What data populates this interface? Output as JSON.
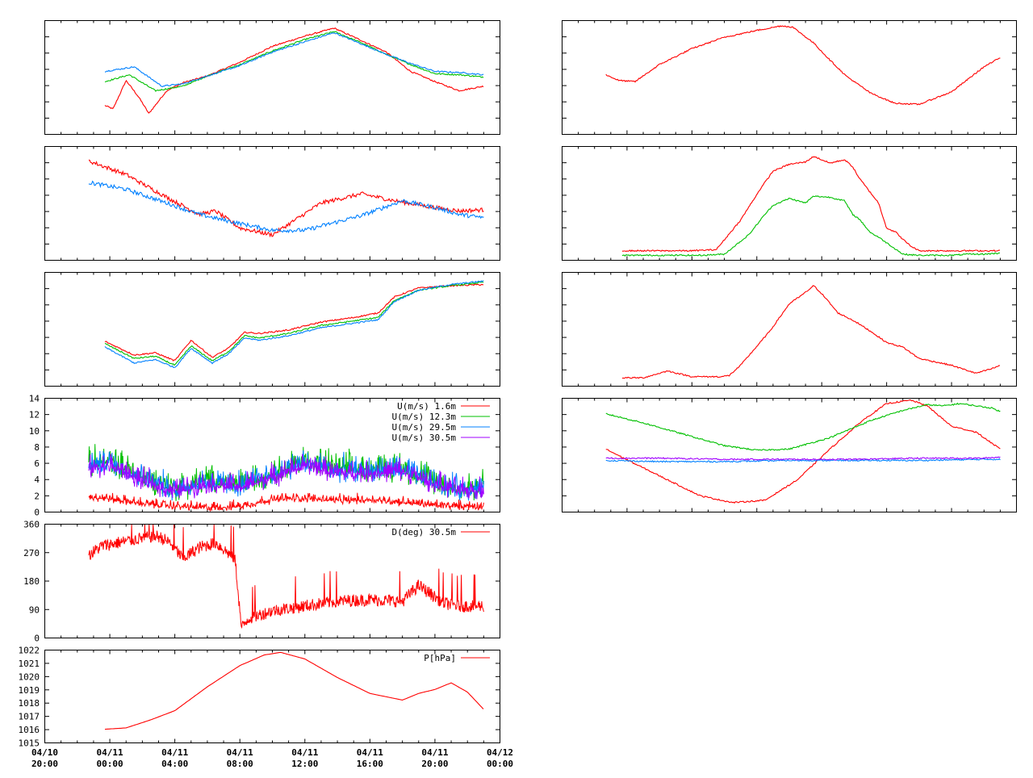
{
  "colors": {
    "red": "#ff0000",
    "green": "#00c000",
    "blue": "#0080ff",
    "purple": "#a000ff",
    "frame": "#000000"
  },
  "x_axis": {
    "range": [
      "04/10 20:00",
      "04/12 00:00"
    ],
    "ticks": [
      {
        "date": "04/10",
        "time": "20:00"
      },
      {
        "date": "04/11",
        "time": "00:00"
      },
      {
        "date": "04/11",
        "time": "04:00"
      },
      {
        "date": "04/11",
        "time": "08:00"
      },
      {
        "date": "04/11",
        "time": "12:00"
      },
      {
        "date": "04/11",
        "time": "16:00"
      },
      {
        "date": "04/11",
        "time": "20:00"
      },
      {
        "date": "04/12",
        "time": "00:00"
      }
    ]
  },
  "chart_data": [
    {
      "type": "line",
      "id": "left-1",
      "grid": false,
      "series": [
        {
          "color": "red",
          "x_hours": [
            3.7,
            4.2,
            5.0,
            5.8,
            6.4,
            7.5,
            8.5,
            10,
            12,
            14,
            16,
            17.8,
            19.5,
            21,
            22.5,
            24,
            25.5,
            27
          ],
          "y_rel": [
            0.25,
            0.22,
            0.47,
            0.32,
            0.18,
            0.38,
            0.45,
            0.51,
            0.63,
            0.77,
            0.86,
            0.93,
            0.82,
            0.72,
            0.55,
            0.46,
            0.38,
            0.42
          ]
        },
        {
          "color": "green",
          "x_hours": [
            3.7,
            5.2,
            6.8,
            8.5,
            10,
            12,
            14,
            16,
            17.8,
            19.5,
            21,
            22.5,
            24,
            25.5,
            27
          ],
          "y_rel": [
            0.46,
            0.52,
            0.38,
            0.42,
            0.51,
            0.61,
            0.73,
            0.83,
            0.9,
            0.8,
            0.7,
            0.61,
            0.53,
            0.52,
            0.5
          ]
        },
        {
          "color": "blue",
          "x_hours": [
            3.7,
            5.5,
            7.2,
            8.5,
            10,
            12,
            14,
            16,
            17.8,
            19.5,
            21,
            22.5,
            24,
            25.5,
            27
          ],
          "y_rel": [
            0.55,
            0.59,
            0.42,
            0.44,
            0.51,
            0.6,
            0.72,
            0.81,
            0.89,
            0.79,
            0.7,
            0.62,
            0.55,
            0.54,
            0.52
          ]
        }
      ]
    },
    {
      "type": "line",
      "id": "left-2",
      "grid": false,
      "series": [
        {
          "color": "red",
          "x_hours": [
            2.7,
            5,
            7.5,
            9.5,
            10.5,
            12,
            14,
            15.5,
            17,
            19.5,
            21.5,
            24,
            25.5,
            27
          ],
          "y_rel": [
            0.87,
            0.75,
            0.55,
            0.4,
            0.43,
            0.28,
            0.22,
            0.36,
            0.5,
            0.58,
            0.52,
            0.46,
            0.43,
            0.44
          ]
        },
        {
          "color": "blue",
          "x_hours": [
            2.7,
            5,
            7.5,
            9.5,
            11,
            14,
            16,
            19.5,
            22,
            24,
            25.5,
            27
          ],
          "y_rel": [
            0.68,
            0.62,
            0.5,
            0.4,
            0.35,
            0.26,
            0.26,
            0.39,
            0.52,
            0.46,
            0.4,
            0.37
          ]
        }
      ]
    },
    {
      "type": "line",
      "id": "left-3",
      "grid": false,
      "series": [
        {
          "color": "red",
          "x_hours": [
            3.7,
            5.5,
            6.8,
            8.0,
            9.0,
            10.3,
            11.3,
            12.3,
            13.2,
            15.0,
            17,
            19,
            20.5,
            21.5,
            23,
            25,
            27
          ],
          "y_rel": [
            0.39,
            0.27,
            0.29,
            0.22,
            0.4,
            0.25,
            0.33,
            0.47,
            0.46,
            0.49,
            0.56,
            0.6,
            0.64,
            0.78,
            0.86,
            0.88,
            0.89
          ]
        },
        {
          "color": "green",
          "x_hours": [
            3.7,
            5.5,
            6.8,
            8.0,
            9.0,
            10.3,
            11.3,
            12.3,
            13.2,
            15.0,
            17,
            19,
            20.5,
            21.5,
            23,
            25,
            27
          ],
          "y_rel": [
            0.37,
            0.24,
            0.26,
            0.18,
            0.35,
            0.22,
            0.3,
            0.44,
            0.42,
            0.46,
            0.53,
            0.57,
            0.6,
            0.75,
            0.84,
            0.88,
            0.91
          ]
        },
        {
          "color": "blue",
          "x_hours": [
            3.7,
            5.5,
            6.8,
            8.0,
            9.0,
            10.3,
            11.3,
            12.3,
            13.2,
            15.0,
            17,
            19,
            20.5,
            21.5,
            23,
            25,
            27
          ],
          "y_rel": [
            0.34,
            0.2,
            0.23,
            0.16,
            0.33,
            0.2,
            0.28,
            0.42,
            0.4,
            0.44,
            0.51,
            0.55,
            0.58,
            0.74,
            0.84,
            0.89,
            0.92
          ]
        }
      ]
    },
    {
      "type": "line",
      "id": "wind-speed",
      "grid": false,
      "legend_position": "top-right",
      "ylim": [
        0,
        14
      ],
      "yticks": [
        "0",
        "2",
        "4",
        "6",
        "8",
        "10",
        "12",
        "14"
      ],
      "series": [
        {
          "name": "U(m/s)  1.6m",
          "color": "red",
          "x_hours": [
            2.7,
            4,
            6,
            8,
            10,
            12,
            14,
            16,
            18,
            20,
            22,
            24,
            25.5,
            27
          ],
          "y": [
            1.8,
            1.5,
            0.9,
            0.6,
            0.4,
            0.6,
            1.4,
            1.6,
            1.3,
            1.4,
            1.1,
            0.7,
            0.6,
            0.6
          ],
          "noise": 1.0
        },
        {
          "name": "U(m/s) 12.3m",
          "color": "green",
          "x_hours": [
            2.7,
            4,
            6,
            8,
            10,
            12,
            14,
            16,
            18,
            20,
            22,
            24,
            25.5,
            27
          ],
          "y": [
            5.5,
            6.0,
            4.0,
            2.5,
            3.5,
            3.0,
            4.5,
            6.0,
            5.0,
            5.0,
            5.0,
            3.5,
            2.5,
            2.8
          ],
          "noise": 2.8
        },
        {
          "name": "U(m/s) 29.5m",
          "color": "blue",
          "x_hours": [
            2.7,
            4,
            6,
            8,
            10,
            12,
            14,
            16,
            18,
            20,
            22,
            24,
            25.5,
            27
          ],
          "y": [
            5.3,
            5.8,
            3.8,
            2.4,
            3.4,
            2.9,
            4.3,
            5.8,
            4.8,
            4.8,
            4.8,
            3.3,
            2.4,
            2.7
          ],
          "noise": 2.5
        },
        {
          "name": "U(m/s) 30.5m",
          "color": "purple",
          "x_hours": [
            2.7,
            4,
            6,
            8,
            10,
            12,
            14,
            16,
            18,
            20,
            22,
            24,
            25.5,
            27
          ],
          "y": [
            5.0,
            5.5,
            3.5,
            2.3,
            3.2,
            2.8,
            4.0,
            5.5,
            4.5,
            4.5,
            4.8,
            3.2,
            2.3,
            2.6
          ],
          "noise": 2.2
        }
      ]
    },
    {
      "type": "line",
      "id": "wind-direction",
      "grid": false,
      "legend_position": "top-right",
      "ylim": [
        0,
        360
      ],
      "yticks": [
        "0",
        "90",
        "180",
        "270",
        "360"
      ],
      "series": [
        {
          "name": "D(deg)  30.5m",
          "color": "red",
          "x_hours": [
            2.7,
            3.5,
            4.5,
            5.5,
            6.5,
            7.0,
            7.7,
            8.5,
            9.5,
            10.5,
            11.7,
            12.1,
            12.5,
            14,
            16,
            18,
            20,
            22,
            23,
            24.5,
            25.5,
            27
          ],
          "y": [
            260,
            290,
            300,
            310,
            320,
            320,
            300,
            250,
            285,
            300,
            250,
            30,
            60,
            85,
            100,
            115,
            120,
            115,
            165,
            110,
            100,
            100
          ],
          "noise": 40
        }
      ]
    },
    {
      "type": "line",
      "id": "pressure",
      "grid": false,
      "legend_position": "top-right",
      "ylim": [
        1015,
        1022
      ],
      "yticks": [
        "1015",
        "1016",
        "1017",
        "1018",
        "1019",
        "1020",
        "1021",
        "1022"
      ],
      "series": [
        {
          "name": "P[hPa]",
          "color": "red",
          "x_hours": [
            3.7,
            5,
            6.5,
            8.0,
            10.0,
            12.0,
            13.5,
            14.5,
            16,
            18,
            20,
            22,
            23,
            24,
            25,
            26,
            27
          ],
          "y": [
            1016.0,
            1016.1,
            1016.7,
            1017.4,
            1019.2,
            1020.8,
            1021.6,
            1021.8,
            1021.3,
            1019.9,
            1018.7,
            1018.2,
            1018.7,
            1019.0,
            1019.5,
            1018.8,
            1017.5
          ]
        }
      ]
    },
    {
      "type": "line",
      "id": "right-1",
      "grid": false,
      "series": [
        {
          "color": "red",
          "x_hours": [
            2.7,
            3.5,
            4.5,
            6,
            8,
            10,
            12,
            13.5,
            14.2,
            15.5,
            16.5,
            17.5,
            19,
            20.5,
            22,
            24,
            26,
            27
          ],
          "y_rel": [
            0.52,
            0.47,
            0.46,
            0.61,
            0.75,
            0.85,
            0.91,
            0.95,
            0.94,
            0.8,
            0.65,
            0.51,
            0.36,
            0.27,
            0.26,
            0.37,
            0.59,
            0.67
          ]
        }
      ]
    },
    {
      "type": "line",
      "id": "right-2",
      "grid": false,
      "series": [
        {
          "color": "red",
          "x_hours": [
            3.7,
            4.5,
            6,
            8,
            9.5,
            11,
            12.2,
            13,
            14,
            15,
            15.5,
            16.5,
            17.4,
            17.9,
            18.3,
            19.5,
            20,
            20.6,
            21,
            21.5,
            22,
            24,
            27
          ],
          "y_rel": [
            0.08,
            0.08,
            0.08,
            0.08,
            0.09,
            0.35,
            0.62,
            0.78,
            0.84,
            0.86,
            0.91,
            0.85,
            0.88,
            0.82,
            0.72,
            0.5,
            0.28,
            0.24,
            0.18,
            0.12,
            0.08,
            0.08,
            0.08
          ]
        },
        {
          "color": "green",
          "x_hours": [
            3.7,
            5,
            7,
            8.5,
            10,
            11.5,
            12.5,
            13,
            14,
            15,
            15.5,
            16.5,
            17.4,
            17.9,
            18.3,
            19,
            19.5,
            20,
            21,
            22,
            23,
            24,
            25,
            26,
            27
          ],
          "y_rel": [
            0.04,
            0.04,
            0.04,
            0.04,
            0.05,
            0.22,
            0.4,
            0.48,
            0.54,
            0.5,
            0.56,
            0.55,
            0.52,
            0.4,
            0.36,
            0.24,
            0.2,
            0.15,
            0.05,
            0.04,
            0.04,
            0.04,
            0.05,
            0.05,
            0.06
          ]
        }
      ]
    },
    {
      "type": "line",
      "id": "right-3",
      "grid": false,
      "series": [
        {
          "color": "red",
          "x_hours": [
            3.7,
            5.0,
            6.5,
            8.0,
            9.8,
            10.3,
            11.0,
            12.8,
            14.0,
            15.0,
            15.5,
            16.0,
            17,
            18,
            19,
            20,
            21,
            22,
            24,
            25.5,
            26.5,
            27
          ],
          "y_rel": [
            0.07,
            0.07,
            0.13,
            0.08,
            0.08,
            0.09,
            0.18,
            0.48,
            0.72,
            0.82,
            0.88,
            0.81,
            0.64,
            0.57,
            0.48,
            0.38,
            0.34,
            0.24,
            0.18,
            0.11,
            0.15,
            0.18
          ]
        }
      ]
    },
    {
      "type": "line",
      "id": "right-4",
      "grid": false,
      "series": [
        {
          "color": "red",
          "x_hours": [
            2.7,
            4.5,
            6.5,
            8.5,
            10.5,
            12.5,
            14.5,
            16.5,
            18.5,
            20,
            21.5,
            22.5,
            24,
            25.5,
            27
          ],
          "y_rel": [
            0.55,
            0.42,
            0.28,
            0.14,
            0.08,
            0.1,
            0.28,
            0.55,
            0.8,
            0.95,
            0.98,
            0.93,
            0.75,
            0.7,
            0.55
          ]
        },
        {
          "color": "green",
          "x_hours": [
            2.7,
            5,
            7.5,
            10,
            12,
            14,
            16.5,
            19,
            21,
            22.5,
            23.5,
            24.5,
            25.5,
            26.5,
            27
          ],
          "y_rel": [
            0.86,
            0.78,
            0.68,
            0.58,
            0.54,
            0.55,
            0.65,
            0.8,
            0.89,
            0.94,
            0.93,
            0.95,
            0.93,
            0.91,
            0.88
          ]
        },
        {
          "color": "blue",
          "x_hours": [
            2.7,
            6,
            10,
            14,
            18,
            22,
            26,
            27
          ],
          "y_rel": [
            0.45,
            0.44,
            0.44,
            0.45,
            0.45,
            0.45,
            0.46,
            0.46
          ]
        },
        {
          "color": "purple",
          "x_hours": [
            2.7,
            6,
            10,
            14,
            18,
            22,
            26,
            27
          ],
          "y_rel": [
            0.47,
            0.47,
            0.46,
            0.46,
            0.46,
            0.47,
            0.47,
            0.48
          ]
        }
      ]
    }
  ]
}
